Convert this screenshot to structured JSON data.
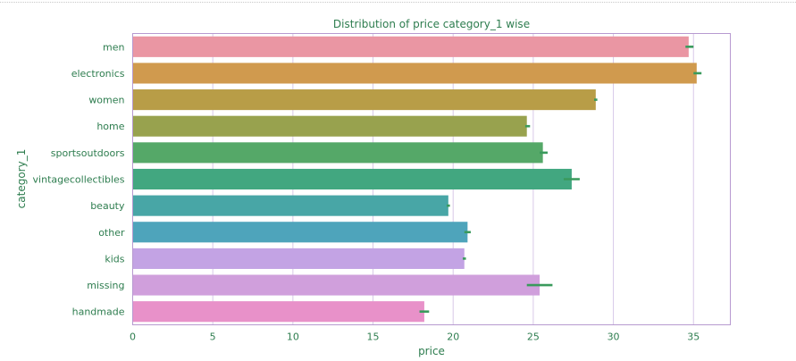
{
  "chart_data": {
    "type": "bar",
    "orientation": "horizontal",
    "title": "Distribution of price category_1 wise",
    "xlabel": "price",
    "ylabel": "category_1",
    "xlim": [
      0,
      37.3
    ],
    "xticks": [
      0,
      5,
      10,
      15,
      20,
      25,
      30,
      35
    ],
    "grid": "vertical",
    "categories": [
      "men",
      "electronics",
      "women",
      "home",
      "sportsoutdoors",
      "vintagecollectibles",
      "beauty",
      "other",
      "kids",
      "missing",
      "handmade"
    ],
    "values": [
      34.7,
      35.2,
      28.9,
      24.6,
      25.6,
      27.4,
      19.7,
      20.9,
      20.7,
      25.4,
      18.2
    ],
    "error_bars": [
      [
        34.5,
        35.0
      ],
      [
        35.0,
        35.5
      ],
      [
        28.8,
        29.0
      ],
      [
        24.5,
        24.8
      ],
      [
        25.4,
        25.9
      ],
      [
        26.9,
        27.9
      ],
      [
        19.6,
        19.8
      ],
      [
        20.7,
        21.1
      ],
      [
        20.6,
        20.8
      ],
      [
        24.6,
        26.2
      ],
      [
        17.9,
        18.5
      ]
    ],
    "colors": [
      "#ea96a3",
      "#d09a4e",
      "#b89d47",
      "#98a24e",
      "#55a868",
      "#42a780",
      "#48a6a6",
      "#4ea4bb",
      "#c3a3e4",
      "#d09fdc",
      "#e891c9"
    ],
    "error_color": "#3a9a5c",
    "text_color": "#2e7d4f",
    "axis_color": "#b79ad0",
    "grid_color": "#d8c8e8"
  }
}
